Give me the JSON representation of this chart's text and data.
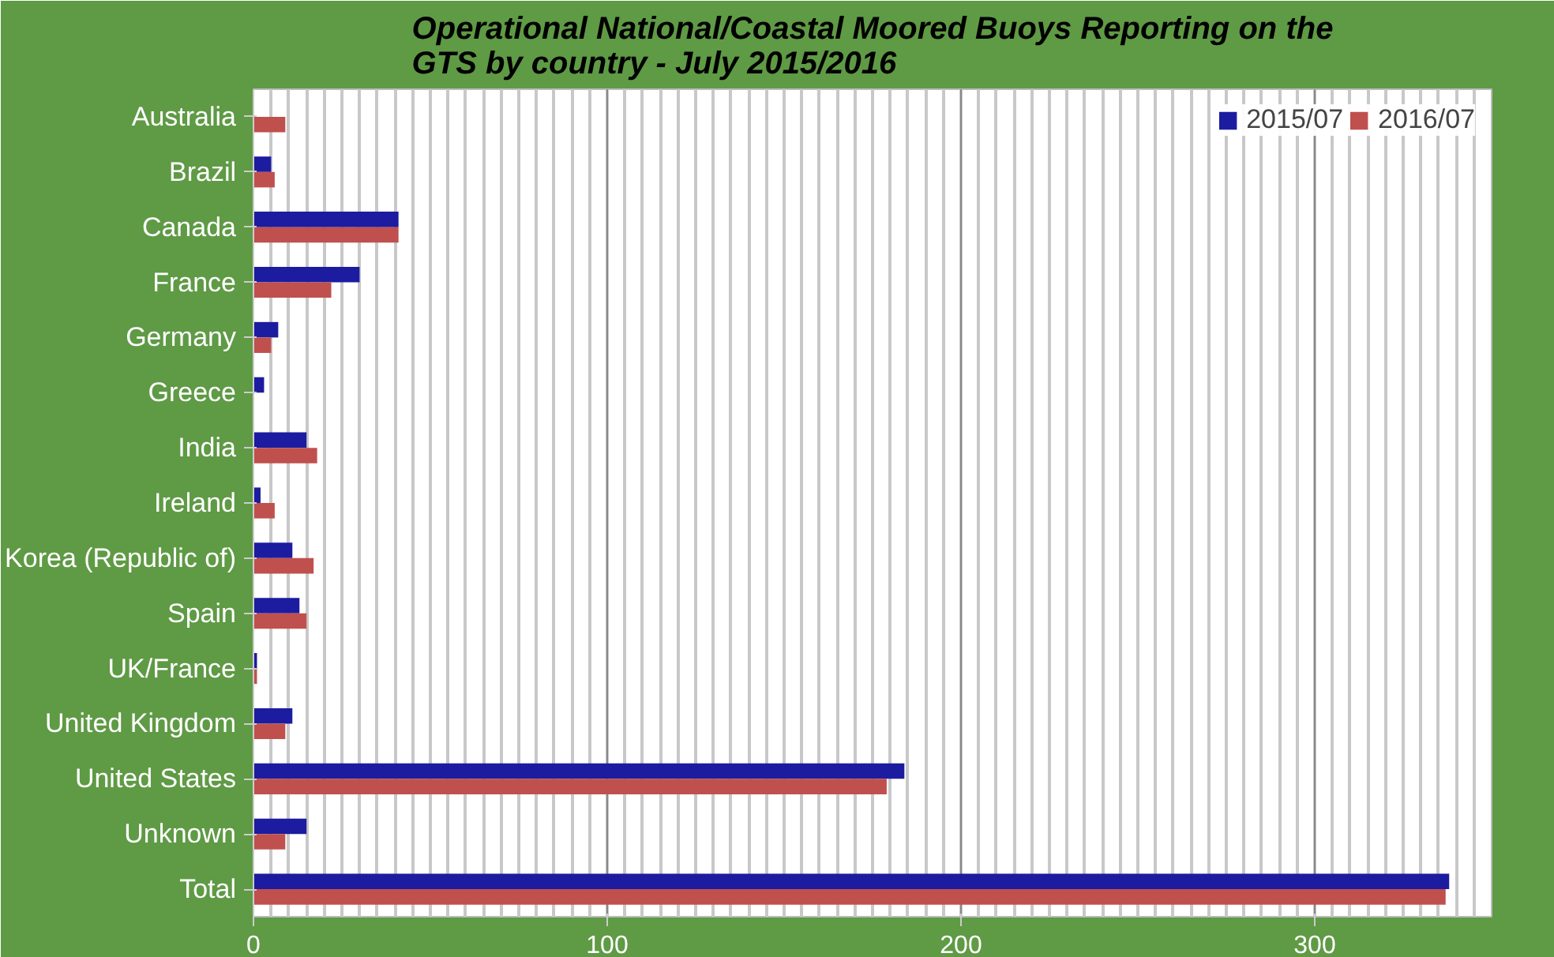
{
  "chart_data": {
    "type": "bar",
    "orientation": "horizontal",
    "title": "Operational National/Coastal Moored Buoys Reporting on the\nGTS  by country - July 2015/2016",
    "categories": [
      "Australia",
      "Brazil",
      "Canada",
      "France",
      "Germany",
      "Greece",
      "India",
      "Ireland",
      "Korea (Republic of)",
      "Spain",
      "UK/France",
      "United Kingdom",
      "United States",
      "Unknown",
      "Total"
    ],
    "series": [
      {
        "name": "2015/07",
        "color": "#1c1ca0",
        "values": [
          null,
          5,
          41,
          30,
          7,
          3,
          15,
          2,
          11,
          13,
          1,
          11,
          184,
          15,
          338
        ]
      },
      {
        "name": "2016/07",
        "color": "#c0504d",
        "values": [
          9,
          6,
          41,
          22,
          5,
          null,
          18,
          6,
          17,
          15,
          1,
          9,
          179,
          9,
          337
        ]
      }
    ],
    "xlim": [
      0,
      350
    ],
    "xticks": [
      0,
      100,
      200,
      300
    ],
    "grid": "x",
    "legend": "top right"
  }
}
